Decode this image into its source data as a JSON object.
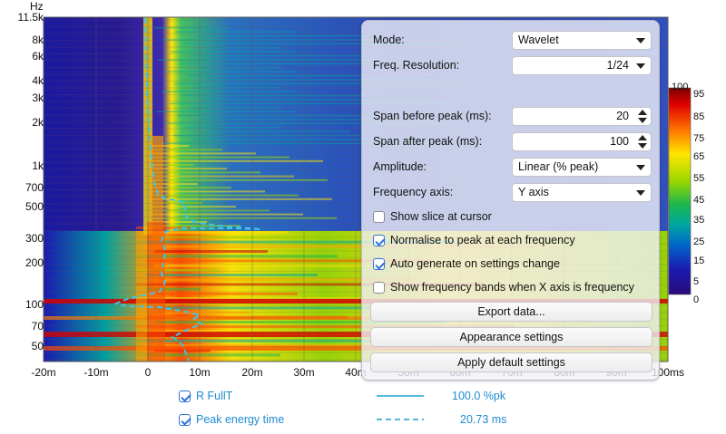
{
  "plot": {
    "y_unit": "Hz",
    "x_unit_suffix": "ms",
    "y_ticks": [
      "11.5k",
      "8k",
      "6k",
      "4k",
      "3k",
      "2k",
      "1k",
      "700",
      "500",
      "300",
      "200",
      "100",
      "70",
      "50"
    ],
    "x_ticks": [
      "-20m",
      "-10m",
      "0",
      "10m",
      "20m",
      "30m",
      "40m",
      "50m",
      "60m",
      "70m",
      "80m",
      "90m",
      "100ms"
    ],
    "x_range_ms": [
      -20,
      100
    ],
    "colorbar_ticks": [
      "100",
      "95",
      "85",
      "75",
      "65",
      "55",
      "45",
      "35",
      "25",
      "15",
      "5",
      "0"
    ],
    "colormap": [
      "#7a0000",
      "#d40000",
      "#ff4a00",
      "#ffa000",
      "#ffe600",
      "#9cd800",
      "#1fb84a",
      "#00a8a0",
      "#0066c8",
      "#1a1ab0",
      "#2a0a7a"
    ]
  },
  "panel": {
    "mode_label": "Mode:",
    "mode_value": "Wavelet",
    "freq_res_label": "Freq. Resolution:",
    "freq_res_value": "1/24",
    "span_before_label": "Span before peak (ms):",
    "span_before_value": "20",
    "span_after_label": "Span after peak (ms):",
    "span_after_value": "100",
    "amplitude_label": "Amplitude:",
    "amplitude_value": "Linear (% peak)",
    "freq_axis_label": "Frequency axis:",
    "freq_axis_value": "Y axis",
    "checkboxes": [
      {
        "label": "Show slice at cursor",
        "checked": false
      },
      {
        "label": "Normalise to peak at each frequency",
        "checked": true
      },
      {
        "label": "Auto generate on settings change",
        "checked": true
      },
      {
        "label": "Show frequency bands when X axis is frequency",
        "checked": false
      }
    ],
    "export_button": "Export data...",
    "appearance_button": "Appearance settings",
    "apply_defaults_button": "Apply default settings"
  },
  "legend": [
    {
      "name": "R FullT",
      "value": "100.0 %pk",
      "style": "solid",
      "color": "#1f9fd0"
    },
    {
      "name": "Peak energy time",
      "value": "20.73 ms",
      "style": "dashed",
      "color": "#1f9fd0"
    }
  ]
}
